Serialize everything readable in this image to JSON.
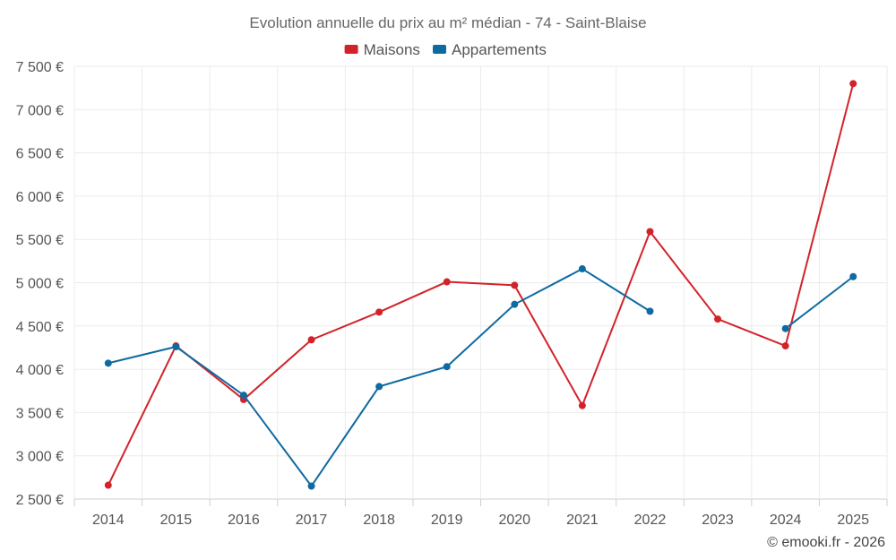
{
  "chart_data": {
    "type": "line",
    "title": "Evolution annuelle du prix au m² médian - 74 - Saint-Blaise",
    "categories": [
      "2014",
      "2015",
      "2016",
      "2017",
      "2018",
      "2019",
      "2020",
      "2021",
      "2022",
      "2023",
      "2024",
      "2025"
    ],
    "ylim": [
      2500,
      7500
    ],
    "yticks": [
      2500,
      3000,
      3500,
      4000,
      4500,
      5000,
      5500,
      6000,
      6500,
      7000,
      7500
    ],
    "ytick_labels": [
      "2 500 €",
      "3 000 €",
      "3 500 €",
      "4 000 €",
      "4 500 €",
      "5 000 €",
      "5 500 €",
      "6 000 €",
      "6 500 €",
      "7 000 €",
      "7 500 €"
    ],
    "grid": true,
    "legend_position": "top-center",
    "series": [
      {
        "name": "Maisons",
        "color": "#d2232a",
        "values": [
          2660,
          4270,
          3650,
          4340,
          4660,
          5010,
          4970,
          3580,
          5590,
          4580,
          4270,
          7300
        ]
      },
      {
        "name": "Appartements",
        "color": "#0f6aa1",
        "values": [
          4070,
          4260,
          3700,
          2650,
          3800,
          4030,
          4750,
          5160,
          4670,
          null,
          4470,
          5070
        ]
      }
    ]
  },
  "credit": "© emooki.fr - 2026"
}
